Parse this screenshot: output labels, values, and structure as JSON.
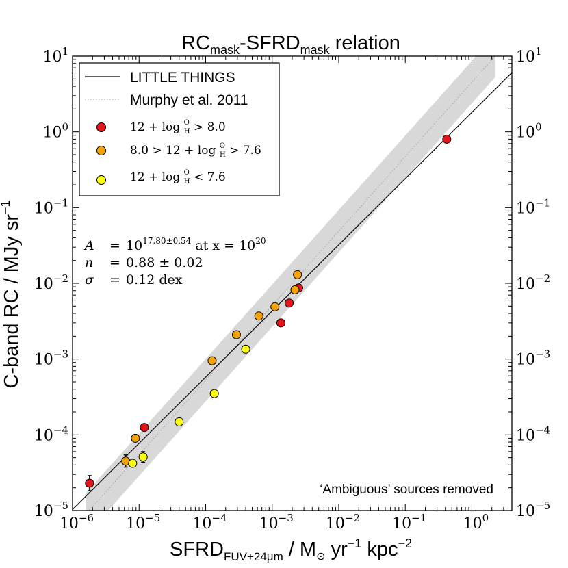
{
  "chart_data": {
    "type": "scatter",
    "scale": "log-log",
    "title": {
      "main": "RC",
      "sub1": "mask",
      "mid": "-SFRD",
      "sub2": "mask",
      "end": " relation"
    },
    "xlabel": {
      "main": "SFRD",
      "sub": "FUV+24μm",
      "rest": "  /  M",
      "sun": "⊙",
      "unit": " yr",
      "exp1": "−1",
      "unit2": " kpc",
      "exp2": "−2"
    },
    "ylabel": "C-band RC  /  MJy sr",
    "ylabel_exp": "−1",
    "xlim": [
      1e-06,
      4.0
    ],
    "ylim": [
      1e-05,
      10
    ],
    "x_ticks": [
      {
        "value": 1e-06,
        "base": "10",
        "exp": "−6"
      },
      {
        "value": 1e-05,
        "base": "10",
        "exp": "−5"
      },
      {
        "value": 0.0001,
        "base": "10",
        "exp": "−4"
      },
      {
        "value": 0.001,
        "base": "10",
        "exp": "−3"
      },
      {
        "value": 0.01,
        "base": "10",
        "exp": "−2"
      },
      {
        "value": 0.1,
        "base": "10",
        "exp": "−1"
      },
      {
        "value": 1,
        "base": "10",
        "exp": "0"
      }
    ],
    "y_ticks": [
      {
        "value": 1e-05,
        "base": "10",
        "exp": "−5"
      },
      {
        "value": 0.0001,
        "base": "10",
        "exp": "−4"
      },
      {
        "value": 0.001,
        "base": "10",
        "exp": "−3"
      },
      {
        "value": 0.01,
        "base": "10",
        "exp": "−2"
      },
      {
        "value": 0.1,
        "base": "10",
        "exp": "−1"
      },
      {
        "value": 1,
        "base": "10",
        "exp": "0"
      },
      {
        "value": 10,
        "base": "10",
        "exp": "1"
      }
    ],
    "fit": {
      "log_x_from": -6.05,
      "log_y_from": -5.03,
      "log_x_to": 0.6,
      "log_y_to": 0.78
    },
    "murphy": {
      "log_x_from": -5.8,
      "log_y_from": -5.05,
      "log_x_to": 0.35,
      "log_y_to": 1.0,
      "band_dex": 0.28
    },
    "legend": {
      "line1": "LITTLE THINGS",
      "line2": "Murphy et al. 2011",
      "m1_pre": "12 + log ",
      "m1_post": " > 8.0",
      "m2_pre": "8.0 > 12 + log ",
      "m2_post": " > 7.6",
      "m3_pre": "12 + log ",
      "m3_post": " < 7.6",
      "frac_num": "O",
      "frac_den": "H"
    },
    "stats": {
      "a_label": "A",
      "a_eq": "=",
      "a_base": "10",
      "a_exp": "17.80±0.54",
      "a_tail": " at x = 10",
      "a_tail_exp": "20",
      "n_label": "n",
      "n_eq": "=",
      "n_val": "0.88 ± 0.02",
      "s_label": "σ",
      "s_eq": "=",
      "s_val": "0.12 dex"
    },
    "note": "‘Ambiguous’ sources removed",
    "colors": {
      "high": "#e8141b",
      "mid": "#f5a207",
      "low": "#fcfc14",
      "band": "#d8d8d8",
      "murphy": "#a8a8a8"
    },
    "points": [
      {
        "group": "high",
        "x": 0.42,
        "y": 0.8,
        "xerr_dex": 0.05,
        "yerr_dex": 0.02
      },
      {
        "group": "high",
        "x": 0.0025,
        "y": 0.0087,
        "xerr_dex": 0.05,
        "yerr_dex": 0.03
      },
      {
        "group": "high",
        "x": 0.0018,
        "y": 0.0055,
        "xerr_dex": 0.05,
        "yerr_dex": 0.03
      },
      {
        "group": "high",
        "x": 0.00135,
        "y": 0.003,
        "xerr_dex": 0.05,
        "yerr_dex": 0.03
      },
      {
        "group": "high",
        "x": 1.2e-05,
        "y": 0.000125,
        "xerr_dex": 0.05,
        "yerr_dex": 0.03
      },
      {
        "group": "high",
        "x": 1.8e-06,
        "y": 2.3e-05,
        "xerr_dex": 0.04,
        "yerr_dex": 0.1
      },
      {
        "group": "mid",
        "x": 0.0024,
        "y": 0.013,
        "xerr_dex": 0.05,
        "yerr_dex": 0.03
      },
      {
        "group": "mid",
        "x": 0.0022,
        "y": 0.0082,
        "xerr_dex": 0.05,
        "yerr_dex": 0.03
      },
      {
        "group": "mid",
        "x": 0.0011,
        "y": 0.0049,
        "xerr_dex": 0.05,
        "yerr_dex": 0.03
      },
      {
        "group": "mid",
        "x": 0.00063,
        "y": 0.0037,
        "xerr_dex": 0.05,
        "yerr_dex": 0.03
      },
      {
        "group": "mid",
        "x": 0.00029,
        "y": 0.0021,
        "xerr_dex": 0.05,
        "yerr_dex": 0.03
      },
      {
        "group": "mid",
        "x": 0.000125,
        "y": 0.00095,
        "xerr_dex": 0.05,
        "yerr_dex": 0.03
      },
      {
        "group": "mid",
        "x": 8.8e-06,
        "y": 9e-05,
        "xerr_dex": 0.05,
        "yerr_dex": 0.04
      },
      {
        "group": "mid",
        "x": 6.3e-06,
        "y": 4.5e-05,
        "xerr_dex": 0.05,
        "yerr_dex": 0.08
      },
      {
        "group": "low",
        "x": 0.0004,
        "y": 0.00135,
        "xerr_dex": 0.05,
        "yerr_dex": 0.03
      },
      {
        "group": "low",
        "x": 0.000135,
        "y": 0.00035,
        "xerr_dex": 0.05,
        "yerr_dex": 0.03
      },
      {
        "group": "low",
        "x": 4e-05,
        "y": 0.000148,
        "xerr_dex": 0.05,
        "yerr_dex": 0.04
      },
      {
        "group": "low",
        "x": 1.15e-05,
        "y": 5.1e-05,
        "xerr_dex": 0.04,
        "yerr_dex": 0.07
      },
      {
        "group": "low",
        "x": 8e-06,
        "y": 4.2e-05,
        "xerr_dex": 0.04,
        "yerr_dex": 0.04
      }
    ]
  }
}
